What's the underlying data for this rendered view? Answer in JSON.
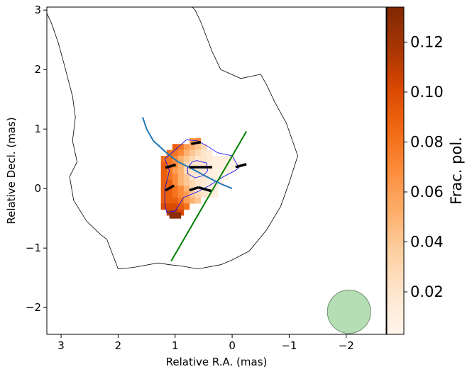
{
  "chart_data": {
    "type": "heatmap",
    "title": "",
    "xlabel": "Relative R.A. (mas)",
    "ylabel": "Relative Decl. (mas)",
    "xlim": [
      3.25,
      -2.7
    ],
    "ylim": [
      -2.45,
      3.05
    ],
    "x_axis_inverted": true,
    "x_ticks": [
      3,
      2,
      1,
      0,
      -1,
      -2
    ],
    "x_tick_labels": [
      "3",
      "2",
      "1",
      "0",
      "−1",
      "−2"
    ],
    "y_ticks": [
      -2,
      -1,
      0,
      1,
      2,
      3
    ],
    "y_tick_labels": [
      "−2",
      "−1",
      "0",
      "1",
      "2",
      "3"
    ],
    "grid": false,
    "colorbar": {
      "label": "Frac. pol.",
      "colormap": "Oranges",
      "vmin": 0.003,
      "vmax": 0.134,
      "ticks": [
        0.02,
        0.04,
        0.06,
        0.08,
        0.1,
        0.12
      ],
      "tick_labels": [
        "0.02",
        "0.04",
        "0.06",
        "0.08",
        "0.10",
        "0.12"
      ]
    },
    "pixel_size_mas": 0.1,
    "heatmap_rows": [
      {
        "y": 0.8,
        "cells": [
          [
            0.6,
            0.07
          ],
          [
            0.7,
            0.06
          ]
        ]
      },
      {
        "y": 0.7,
        "cells": [
          [
            1.0,
            0.09
          ],
          [
            0.9,
            0.08
          ],
          [
            0.8,
            0.06
          ],
          [
            0.7,
            0.05
          ],
          [
            0.6,
            0.04
          ],
          [
            0.5,
            0.03
          ]
        ]
      },
      {
        "y": 0.6,
        "cells": [
          [
            1.1,
            0.08
          ],
          [
            1.0,
            0.08
          ],
          [
            0.9,
            0.07
          ],
          [
            0.8,
            0.05
          ],
          [
            0.7,
            0.04
          ],
          [
            0.6,
            0.03
          ],
          [
            0.5,
            0.02
          ],
          [
            0.4,
            0.015
          ]
        ]
      },
      {
        "y": 0.5,
        "cells": [
          [
            1.2,
            0.08
          ],
          [
            1.1,
            0.08
          ],
          [
            1.0,
            0.07
          ],
          [
            0.9,
            0.05
          ],
          [
            0.8,
            0.04
          ],
          [
            0.7,
            0.03
          ],
          [
            0.6,
            0.02
          ],
          [
            0.5,
            0.02
          ],
          [
            0.4,
            0.015
          ],
          [
            0.3,
            0.01
          ],
          [
            0.2,
            0.01
          ],
          [
            0.1,
            0.008
          ],
          [
            0.0,
            0.008
          ]
        ]
      },
      {
        "y": 0.4,
        "cells": [
          [
            1.2,
            0.09
          ],
          [
            1.1,
            0.08
          ],
          [
            1.0,
            0.07
          ],
          [
            0.9,
            0.05
          ],
          [
            0.8,
            0.03
          ],
          [
            0.7,
            0.02
          ],
          [
            0.6,
            0.02
          ],
          [
            0.5,
            0.02
          ],
          [
            0.4,
            0.01
          ],
          [
            0.3,
            0.01
          ],
          [
            0.2,
            0.008
          ],
          [
            0.1,
            0.006
          ],
          [
            0.0,
            0.006
          ],
          [
            -0.1,
            0.008
          ]
        ]
      },
      {
        "y": 0.3,
        "cells": [
          [
            1.2,
            0.09
          ],
          [
            1.1,
            0.08
          ],
          [
            1.0,
            0.06
          ],
          [
            0.9,
            0.05
          ],
          [
            0.8,
            0.03
          ],
          [
            0.7,
            0.02
          ],
          [
            0.6,
            0.02
          ],
          [
            0.5,
            0.015
          ],
          [
            0.4,
            0.01
          ],
          [
            0.3,
            0.008
          ],
          [
            0.2,
            0.006
          ],
          [
            0.1,
            0.005
          ],
          [
            0.0,
            0.005
          ]
        ]
      },
      {
        "y": 0.2,
        "cells": [
          [
            1.2,
            0.09
          ],
          [
            1.1,
            0.08
          ],
          [
            1.0,
            0.07
          ],
          [
            0.9,
            0.05
          ],
          [
            0.8,
            0.04
          ],
          [
            0.7,
            0.02
          ],
          [
            0.6,
            0.015
          ],
          [
            0.5,
            0.015
          ],
          [
            0.4,
            0.01
          ],
          [
            0.3,
            0.008
          ],
          [
            0.2,
            0.005
          ],
          [
            0.1,
            0.005
          ]
        ]
      },
      {
        "y": 0.1,
        "cells": [
          [
            1.2,
            0.09
          ],
          [
            1.1,
            0.09
          ],
          [
            1.0,
            0.07
          ],
          [
            0.9,
            0.05
          ],
          [
            0.8,
            0.04
          ],
          [
            0.7,
            0.03
          ],
          [
            0.6,
            0.02
          ],
          [
            0.5,
            0.015
          ],
          [
            0.4,
            0.01
          ],
          [
            0.3,
            0.008
          ],
          [
            0.2,
            0.005
          ]
        ]
      },
      {
        "y": 0.0,
        "cells": [
          [
            1.2,
            0.09
          ],
          [
            1.1,
            0.09
          ],
          [
            1.0,
            0.08
          ],
          [
            0.9,
            0.07
          ],
          [
            0.8,
            0.05
          ],
          [
            0.7,
            0.03
          ],
          [
            0.6,
            0.02
          ],
          [
            0.5,
            0.015
          ],
          [
            0.4,
            0.01
          ],
          [
            0.3,
            0.008
          ]
        ]
      },
      {
        "y": -0.1,
        "cells": [
          [
            1.2,
            0.09
          ],
          [
            1.1,
            0.09
          ],
          [
            1.0,
            0.08
          ],
          [
            0.9,
            0.07
          ],
          [
            0.8,
            0.06
          ],
          [
            0.7,
            0.04
          ],
          [
            0.6,
            0.03
          ],
          [
            0.5,
            0.02
          ],
          [
            0.4,
            0.015
          ],
          [
            0.3,
            0.01
          ]
        ]
      },
      {
        "y": -0.2,
        "cells": [
          [
            1.2,
            0.09
          ],
          [
            1.1,
            0.09
          ],
          [
            1.0,
            0.09
          ],
          [
            0.9,
            0.08
          ],
          [
            0.8,
            0.06
          ],
          [
            0.7,
            0.05
          ],
          [
            0.6,
            0.04
          ]
        ]
      },
      {
        "y": -0.3,
        "cells": [
          [
            1.2,
            0.1
          ],
          [
            1.1,
            0.1
          ],
          [
            1.0,
            0.1
          ],
          [
            0.9,
            0.09
          ],
          [
            0.8,
            0.08
          ]
        ]
      },
      {
        "y": -0.4,
        "cells": [
          [
            1.1,
            0.11
          ],
          [
            1.0,
            0.11
          ],
          [
            0.9,
            0.1
          ]
        ]
      },
      {
        "y": -0.45,
        "cells": [
          [
            1.05,
            0.13
          ],
          [
            0.95,
            0.13
          ]
        ]
      }
    ],
    "outer_contour": [
      [
        3.3,
        3.05
      ],
      [
        3.17,
        2.78
      ],
      [
        3.05,
        2.45
      ],
      [
        2.95,
        2.1
      ],
      [
        2.8,
        1.55
      ],
      [
        2.75,
        1.2
      ],
      [
        2.8,
        0.8
      ],
      [
        2.72,
        0.45
      ],
      [
        2.85,
        0.2
      ],
      [
        2.78,
        -0.2
      ],
      [
        2.55,
        -0.55
      ],
      [
        2.3,
        -0.78
      ],
      [
        2.2,
        -0.85
      ],
      [
        2.1,
        -1.1
      ],
      [
        2.0,
        -1.35
      ],
      [
        1.95,
        -1.35
      ],
      [
        1.7,
        -1.32
      ],
      [
        1.3,
        -1.25
      ],
      [
        1.1,
        -1.28
      ],
      [
        0.9,
        -1.3
      ],
      [
        0.6,
        -1.35
      ],
      [
        0.2,
        -1.28
      ],
      [
        0.0,
        -1.2
      ],
      [
        -0.3,
        -1.05
      ],
      [
        -0.6,
        -0.7
      ],
      [
        -0.85,
        -0.3
      ],
      [
        -1.0,
        0.1
      ],
      [
        -1.15,
        0.55
      ],
      [
        -0.95,
        1.1
      ],
      [
        -0.75,
        1.45
      ],
      [
        -0.6,
        1.75
      ],
      [
        -0.5,
        1.92
      ],
      [
        -0.4,
        1.9
      ],
      [
        -0.15,
        1.85
      ],
      [
        0.2,
        2.0
      ],
      [
        0.35,
        2.3
      ],
      [
        0.45,
        2.55
      ],
      [
        0.55,
        2.8
      ],
      [
        0.65,
        3.0
      ],
      [
        0.7,
        3.05
      ]
    ],
    "inner_contour": [
      [
        1.18,
        0.5
      ],
      [
        1.1,
        0.3
      ],
      [
        1.18,
        0.0
      ],
      [
        1.18,
        -0.25
      ],
      [
        1.15,
        -0.4
      ],
      [
        1.0,
        -0.38
      ],
      [
        0.85,
        -0.15
      ],
      [
        0.6,
        -0.05
      ],
      [
        0.4,
        0.05
      ],
      [
        0.15,
        0.2
      ],
      [
        -0.05,
        0.3
      ],
      [
        -0.12,
        0.35
      ],
      [
        0.0,
        0.55
      ],
      [
        0.25,
        0.6
      ],
      [
        0.45,
        0.72
      ],
      [
        0.6,
        0.8
      ],
      [
        0.8,
        0.82
      ],
      [
        1.0,
        0.65
      ],
      [
        1.18,
        0.5
      ]
    ],
    "small_contour": [
      [
        0.62,
        0.47
      ],
      [
        0.45,
        0.43
      ],
      [
        0.43,
        0.3
      ],
      [
        0.5,
        0.22
      ],
      [
        0.65,
        0.18
      ],
      [
        0.78,
        0.25
      ],
      [
        0.78,
        0.35
      ],
      [
        0.7,
        0.45
      ],
      [
        0.62,
        0.47
      ]
    ],
    "blue_curve": [
      [
        1.57,
        1.2
      ],
      [
        1.5,
        1.0
      ],
      [
        1.38,
        0.8
      ],
      [
        1.15,
        0.6
      ],
      [
        0.95,
        0.45
      ],
      [
        0.7,
        0.33
      ],
      [
        0.45,
        0.2
      ],
      [
        0.2,
        0.08
      ],
      [
        0.0,
        0.0
      ]
    ],
    "green_line": [
      [
        1.07,
        -1.22
      ],
      [
        -0.25,
        0.96
      ]
    ],
    "evpa_ticks": [
      [
        [
          0.72,
          0.75
        ],
        [
          0.55,
          0.78
        ]
      ],
      [
        [
          1.17,
          0.35
        ],
        [
          0.99,
          0.4
        ]
      ],
      [
        [
          0.75,
          0.36
        ],
        [
          0.35,
          0.36
        ]
      ],
      [
        [
          -0.06,
          0.36
        ],
        [
          -0.25,
          0.41
        ]
      ],
      [
        [
          1.17,
          -0.03
        ],
        [
          1.02,
          0.05
        ]
      ],
      [
        [
          0.75,
          -0.03
        ],
        [
          0.59,
          0.02
        ]
      ],
      [
        [
          0.59,
          0.02
        ],
        [
          0.37,
          -0.04
        ]
      ]
    ],
    "beam": {
      "center": [
        -2.05,
        -2.07
      ],
      "radius_mas": 0.38,
      "color": "#2ca02c"
    },
    "colors": {
      "curve": "#1f77b4",
      "line": "#008000",
      "contour_inner": "#0000ff",
      "contour_outer": "#000000",
      "beam_edge": "#6f8f6f"
    }
  }
}
